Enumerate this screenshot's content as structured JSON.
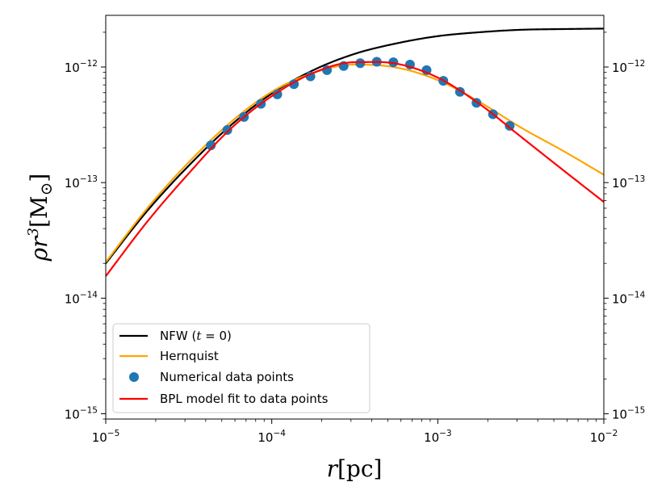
{
  "chart_data": {
    "type": "line",
    "xscale": "log",
    "yscale": "log",
    "xlim": [
      1e-05,
      0.01
    ],
    "ylim": [
      9e-16,
      2.8e-12
    ],
    "xticks": [
      {
        "value": 1e-05,
        "base": "10",
        "exp": "−5"
      },
      {
        "value": 0.0001,
        "base": "10",
        "exp": "−4"
      },
      {
        "value": 0.001,
        "base": "10",
        "exp": "−3"
      },
      {
        "value": 0.01,
        "base": "10",
        "exp": "−2"
      }
    ],
    "yticks": [
      {
        "value": 1e-15,
        "base": "10",
        "exp": "−15"
      },
      {
        "value": 1e-14,
        "base": "10",
        "exp": "−14"
      },
      {
        "value": 1e-13,
        "base": "10",
        "exp": "−13"
      },
      {
        "value": 1e-12,
        "base": "10",
        "exp": "−12"
      }
    ],
    "xlabel": {
      "var": "r",
      "unit": "pc"
    },
    "ylabel": {
      "var": "ρr",
      "exp": "3",
      "unit": "M",
      "sub": "⊙"
    },
    "grid": false,
    "legend_position": "lower-left",
    "series": [
      {
        "name": "NFW (t = 0)",
        "name_parts": [
          "NFW (",
          "t",
          " = 0)"
        ],
        "kind": "line",
        "color": "#000000",
        "x": [
          1e-05,
          1.78e-05,
          3.16e-05,
          5.62e-05,
          0.0001,
          0.000178,
          0.000316,
          0.000562,
          0.001,
          0.00178,
          0.00316,
          0.00562,
          0.01
        ],
        "y": [
          2e-14,
          5.7e-14,
          1.4e-13,
          3.1e-13,
          5.9e-13,
          9.4e-13,
          1.3e-12,
          1.6e-12,
          1.85e-12,
          2e-12,
          2.1e-12,
          2.13e-12,
          2.15e-12
        ]
      },
      {
        "name": "Hernquist",
        "kind": "line",
        "color": "#ffa500",
        "x": [
          1e-05,
          1.78e-05,
          3.16e-05,
          5.62e-05,
          0.0001,
          0.000178,
          0.000316,
          0.000562,
          0.001,
          0.00178,
          0.00316,
          0.00562,
          0.01
        ],
        "y": [
          2.05e-14,
          6e-14,
          1.5e-13,
          3.3e-13,
          6.1e-13,
          8.9e-13,
          1.05e-12,
          9.9e-13,
          7.7e-13,
          5e-13,
          3e-13,
          1.9e-13,
          1.17e-13
        ]
      },
      {
        "name": "Numerical data points",
        "kind": "scatter",
        "color": "#1f77b4",
        "x": [
          4.3e-05,
          5.4e-05,
          6.8e-05,
          8.6e-05,
          0.000108,
          0.000136,
          0.000171,
          0.000215,
          0.000271,
          0.000341,
          0.000429,
          0.00054,
          0.00068,
          0.000856,
          0.00108,
          0.00136,
          0.00171,
          0.00215,
          0.00271
        ],
        "y": [
          2.1e-13,
          2.85e-13,
          3.7e-13,
          4.8e-13,
          5.8e-13,
          7.1e-13,
          8.3e-13,
          9.4e-13,
          1.02e-12,
          1.08e-12,
          1.11e-12,
          1.1e-12,
          1.05e-12,
          9.4e-13,
          7.6e-13,
          6.1e-13,
          4.9e-13,
          3.9e-13,
          3.1e-13
        ]
      },
      {
        "name": "BPL model fit to data points",
        "kind": "line",
        "color": "#ff0000",
        "x": [
          1e-05,
          1.78e-05,
          3.16e-05,
          5.62e-05,
          0.0001,
          0.000178,
          0.000316,
          0.000562,
          0.001,
          0.00178,
          0.00316,
          0.00562,
          0.01
        ],
        "y": [
          1.55e-14,
          4.6e-14,
          1.2e-13,
          2.9e-13,
          5.6e-13,
          8.9e-13,
          1.1e-12,
          1.07e-12,
          8.1e-13,
          4.8e-13,
          2.5e-13,
          1.3e-13,
          6.8e-14
        ]
      }
    ]
  }
}
